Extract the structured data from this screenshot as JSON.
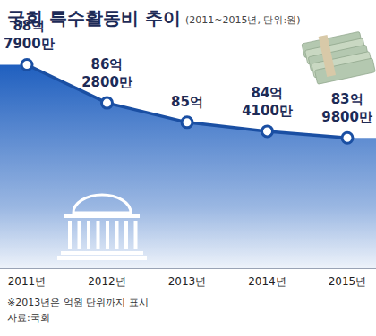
{
  "chart_data": {
    "type": "area",
    "title": "국회 특수활동비 추이",
    "subtitle": "(2011~2015년, 단위:원)",
    "categories": [
      "2011년",
      "2012년",
      "2013년",
      "2014년",
      "2015년"
    ],
    "values": [
      8879000000,
      8628000000,
      8500000000,
      8441000000,
      8398000000
    ],
    "value_labels": [
      "88억\n7900만",
      "86억\n2800만",
      "85억",
      "84억\n4100만",
      "83억\n9800만"
    ],
    "data_labels": true,
    "color": "#1f5fbf",
    "marker": "circle",
    "ylim": [
      7540000000,
      9070000000
    ],
    "tick_labels": "x",
    "grid": false,
    "notes": [
      "※2013년은 억원 단위까지 표시",
      "자료:국회"
    ]
  }
}
